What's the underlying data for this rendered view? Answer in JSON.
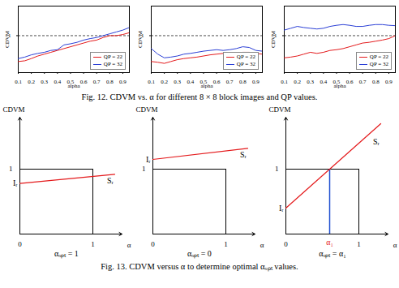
{
  "chart_data": [
    {
      "type": "line",
      "xlabel": "alpha",
      "ylabel": "CDVM",
      "x": [
        0.1,
        0.15,
        0.2,
        0.25,
        0.3,
        0.35,
        0.4,
        0.45,
        0.5,
        0.55,
        0.6,
        0.65,
        0.7,
        0.75,
        0.8,
        0.85,
        0.9,
        0.95
      ],
      "series": [
        {
          "name": "QP = 22",
          "color": "#e41a1c",
          "values": [
            0.3,
            0.32,
            0.38,
            0.45,
            0.5,
            0.55,
            0.6,
            0.65,
            0.7,
            0.75,
            0.8,
            0.85,
            0.88,
            0.95,
            1.0,
            1.0,
            1.03,
            1.08
          ]
        },
        {
          "name": "QP = 32",
          "color": "#2b3fd6",
          "values": [
            0.38,
            0.42,
            0.48,
            0.52,
            0.55,
            0.6,
            0.62,
            0.75,
            0.78,
            0.82,
            0.88,
            0.92,
            0.95,
            1.0,
            1.05,
            1.1,
            1.15,
            1.22
          ]
        }
      ],
      "xlim": [
        0.1,
        0.95
      ],
      "xticks": [
        0.1,
        0.2,
        0.3,
        0.4,
        0.5,
        0.6,
        0.7,
        0.8,
        0.9
      ],
      "ylim": [
        0,
        1.8
      ],
      "yticks": [
        1
      ],
      "grid": true,
      "legend": "lower right"
    },
    {
      "type": "line",
      "xlabel": "alpha",
      "ylabel": "CDVM",
      "x": [
        0.1,
        0.15,
        0.2,
        0.25,
        0.3,
        0.35,
        0.4,
        0.45,
        0.5,
        0.55,
        0.6,
        0.65,
        0.7,
        0.75,
        0.8,
        0.85,
        0.9,
        0.95
      ],
      "series": [
        {
          "name": "QP = 22",
          "color": "#e41a1c",
          "values": [
            0.3,
            0.28,
            0.25,
            0.3,
            0.35,
            0.38,
            0.4,
            0.42,
            0.45,
            0.48,
            0.5,
            0.52,
            0.5,
            0.52,
            0.55,
            0.55,
            0.52,
            0.5
          ]
        },
        {
          "name": "QP = 32",
          "color": "#2b3fd6",
          "values": [
            0.65,
            0.5,
            0.4,
            0.42,
            0.45,
            0.5,
            0.52,
            0.55,
            0.58,
            0.6,
            0.62,
            0.6,
            0.62,
            0.65,
            0.7,
            0.68,
            0.6,
            0.58
          ]
        }
      ],
      "xlim": [
        0.1,
        0.95
      ],
      "xticks": [
        0.1,
        0.2,
        0.3,
        0.4,
        0.5,
        0.6,
        0.7,
        0.8,
        0.9
      ],
      "ylim": [
        0,
        1.8
      ],
      "yticks": [
        1
      ],
      "grid": true,
      "legend": "lower right"
    },
    {
      "type": "line",
      "xlabel": "alpha",
      "ylabel": "CDVM",
      "x": [
        0.1,
        0.15,
        0.2,
        0.25,
        0.3,
        0.35,
        0.4,
        0.45,
        0.5,
        0.55,
        0.6,
        0.65,
        0.7,
        0.75,
        0.8,
        0.85,
        0.9,
        0.95
      ],
      "series": [
        {
          "name": "QP = 22",
          "color": "#e41a1c",
          "values": [
            0.4,
            0.42,
            0.45,
            0.5,
            0.55,
            0.52,
            0.55,
            0.6,
            0.62,
            0.65,
            0.7,
            0.75,
            0.8,
            0.82,
            0.85,
            0.88,
            0.92,
            1.0
          ]
        },
        {
          "name": "QP = 32",
          "color": "#2b3fd6",
          "values": [
            1.15,
            1.2,
            1.25,
            1.22,
            1.2,
            1.18,
            1.2,
            1.25,
            1.28,
            1.3,
            1.28,
            1.25,
            1.25,
            1.28,
            1.3,
            1.3,
            1.28,
            1.27
          ]
        }
      ],
      "xlim": [
        0.1,
        0.95
      ],
      "xticks": [
        0.1,
        0.2,
        0.3,
        0.4,
        0.5,
        0.6,
        0.7,
        0.8,
        0.9
      ],
      "ylim": [
        0,
        1.8
      ],
      "yticks": [
        1
      ],
      "grid": true,
      "legend": "lower right"
    },
    {
      "type": "line",
      "title": "αₒₚₜ = 1",
      "xlabel": "α",
      "ylabel": "CDVM",
      "x": [
        0,
        1.3
      ],
      "series": [
        {
          "color": "#e41a1c",
          "values": [
            0.78,
            0.92
          ]
        }
      ],
      "xlim": [
        0,
        1.4
      ],
      "xticks": [
        0,
        1
      ],
      "ylim": [
        0,
        1.8
      ],
      "yticks": [
        1
      ],
      "grid": true,
      "annotations": [
        {
          "text": "Iᵣ",
          "x": 0,
          "y": 0.78,
          "color": "#000000"
        },
        {
          "text": "Sᵣ",
          "x": 1.15,
          "y": 0.9,
          "color": "#000000"
        }
      ]
    },
    {
      "type": "line",
      "title": "αₒₚₜ = 0",
      "xlabel": "α",
      "ylabel": "CDVM",
      "x": [
        0,
        1.3
      ],
      "series": [
        {
          "color": "#e41a1c",
          "values": [
            1.15,
            1.32
          ]
        }
      ],
      "xlim": [
        0,
        1.4
      ],
      "xticks": [
        0,
        1
      ],
      "ylim": [
        0,
        1.8
      ],
      "yticks": [
        1
      ],
      "grid": true,
      "annotations": [
        {
          "text": "Iᵣ",
          "x": 0,
          "y": 1.15,
          "color": "#000000"
        },
        {
          "text": "Sᵣ",
          "x": 1.15,
          "y": 1.3,
          "color": "#000000"
        }
      ]
    },
    {
      "type": "line",
      "title": "αₒₚₜ = α₁",
      "xlabel": "α",
      "ylabel": "CDVM",
      "x": [
        0,
        1.3
      ],
      "series": [
        {
          "color": "#e41a1c",
          "values": [
            0.4,
            1.7
          ]
        }
      ],
      "xlim": [
        0,
        1.4
      ],
      "xticks": [
        0,
        1
      ],
      "ylim": [
        0,
        1.8
      ],
      "yticks": [
        1
      ],
      "grid": true,
      "vertical_lines": [
        {
          "x": 0.6,
          "y": 1,
          "color": "#1f4fd0"
        }
      ],
      "annotations": [
        {
          "text": "Iᵣ",
          "x": 0,
          "y": 0.4,
          "color": "#000000"
        },
        {
          "text": "Sᵣ",
          "x": 1.15,
          "y": 1.5,
          "color": "#000000"
        },
        {
          "text": "α₁",
          "x": 0.6,
          "y": 0,
          "color": "#e41a1c"
        }
      ]
    }
  ],
  "captions": [
    "Fig. 12.   CDVM vs. α for different 8 × 8 block images and QP values.",
    "Fig. 13.   CDVM versus α to determine optimal αₒₚₜ values."
  ]
}
